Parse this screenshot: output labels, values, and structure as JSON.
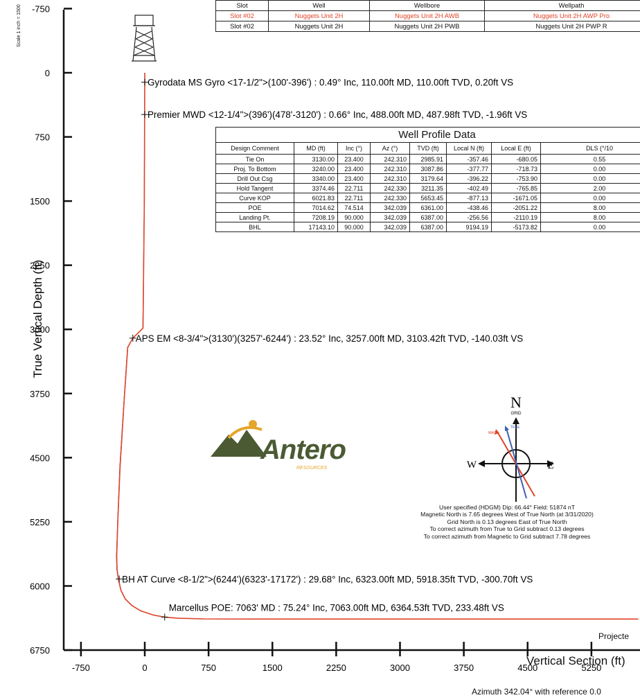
{
  "slot_table": {
    "headers": [
      "Slot",
      "Well",
      "Wellbore",
      "Wellpath"
    ],
    "rows": [
      [
        "Slot #02",
        "Nuggets Unit 2H",
        "Nuggets Unit 2H AWB",
        "Nuggets Unit 2H AWP Pro"
      ],
      [
        "Slot #02",
        "Nuggets Unit 2H",
        "Nuggets Unit 2H PWB",
        "Nuggets Unit 2H PWP R"
      ]
    ],
    "highlight_color": "#e0452b"
  },
  "profile_table": {
    "title": "Well Profile Data",
    "headers": [
      "Design Comment",
      "MD (ft)",
      "Inc (°)",
      "Az (°)",
      "TVD (ft)",
      "Local N (ft)",
      "Local E (ft)",
      "DLS (°/10"
    ],
    "rows": [
      [
        "Tie On",
        "3130.00",
        "23.400",
        "242.310",
        "2985.91",
        "-357.46",
        "-680.05",
        "0.55"
      ],
      [
        "Proj. To Bottom",
        "3240.00",
        "23.400",
        "242.310",
        "3087.86",
        "-377.77",
        "-718.73",
        "0.00"
      ],
      [
        "Drill Out Csg",
        "3340.00",
        "23.400",
        "242.310",
        "3179.64",
        "-396.22",
        "-753.90",
        "0.00"
      ],
      [
        "Hold Tangent",
        "3374.46",
        "22.711",
        "242.330",
        "3211.35",
        "-402.49",
        "-765.85",
        "2.00"
      ],
      [
        "Curve KOP",
        "6021.83",
        "22.711",
        "242.330",
        "5653.45",
        "-877.13",
        "-1671.05",
        "0.00"
      ],
      [
        "POE",
        "7014.62",
        "74.514",
        "342.039",
        "6361.00",
        "-438.46",
        "-2051.22",
        "8.00"
      ],
      [
        "Landing Pt.",
        "7208.19",
        "90.000",
        "342.039",
        "6387.00",
        "-256.56",
        "-2110.19",
        "8.00"
      ],
      [
        "BHL",
        "17143.10",
        "90.000",
        "342.039",
        "6387.00",
        "9194.19",
        "-5173.82",
        "0.00"
      ]
    ]
  },
  "chart_data": {
    "type": "line",
    "xlabel": "Vertical Section (ft)",
    "xlabel_sub": "Azimuth 342.04° with reference 0.0",
    "ylabel": "True Vertical Depth (ft)",
    "scale_note": "Scale 1 inch = 1500",
    "x_ticks": [
      "-750",
      "0",
      "750",
      "1500",
      "2250",
      "3000",
      "3750",
      "4500",
      "5250"
    ],
    "y_ticks": [
      "-750",
      "0",
      "750",
      "1500",
      "2250",
      "3000",
      "3750",
      "4500",
      "5250",
      "6000",
      "6750"
    ],
    "xlim": [
      -750,
      5800
    ],
    "ylim": [
      -750,
      6750
    ],
    "y_inverted": true,
    "series": [
      {
        "color": "#e0452b",
        "x": [
          0,
          0,
          -2,
          -5,
          -20,
          -140,
          -200,
          -240,
          -290,
          -315,
          -330,
          -326,
          -310,
          -280,
          -230,
          -150,
          -50,
          100,
          234,
          400,
          700,
          1500,
          3000,
          4500,
          5800
        ],
        "y": [
          0,
          110,
          488,
          1500,
          2985,
          3103,
          3211,
          3800,
          4600,
          5200,
          5650,
          5800,
          5918,
          6050,
          6150,
          6230,
          6290,
          6340,
          6364,
          6378,
          6385,
          6387,
          6387,
          6387,
          6387
        ]
      },
      {
        "color": "#111111",
        "x": [
          0,
          0,
          -2,
          -6,
          -22,
          -142,
          -202,
          -242,
          -292,
          -317,
          -332,
          -328,
          -312,
          -282,
          -232,
          -152,
          -52,
          98,
          232,
          398,
          698,
          1500,
          3000,
          4500,
          5800
        ],
        "y": [
          0,
          110,
          488,
          1500,
          2985,
          3103,
          3211,
          3800,
          4600,
          5200,
          5650,
          5800,
          5918,
          6050,
          6150,
          6230,
          6290,
          6340,
          6364,
          6378,
          6385,
          6387,
          6387,
          6387,
          6387
        ]
      }
    ],
    "annotations": [
      {
        "x": 0,
        "y": 110,
        "text": "Gyrodata MS Gyro <17-1/2\">(100'-396') : 0.49° Inc, 110.00ft MD, 110.00ft TVD, 0.20ft VS"
      },
      {
        "x": 0,
        "y": 488,
        "text": "Premier MWD <12-1/4\">(396')(478'-3120') : 0.66° Inc, 488.00ft MD, 487.98ft TVD, -1.96ft VS"
      },
      {
        "x": -140,
        "y": 3103,
        "text": "APS EM <8-3/4\">(3130')(3257'-6244') : 23.52° Inc, 3257.00ft MD, 3103.42ft TVD, -140.03ft VS"
      },
      {
        "x": -300,
        "y": 5918,
        "text": "BH AT Curve <8-1/2\">(6244')(6323'-17172') : 29.68° Inc, 6323.00ft MD, 5918.35ft TVD, -300.70ft VS"
      },
      {
        "x": 234,
        "y": 6364,
        "text": "Marcellus POE: 7063' MD : 75.24° Inc, 7063.00ft MD, 6364.53ft TVD, 233.48ft VS"
      }
    ],
    "projected_label": "Projecte"
  },
  "logo": {
    "text": "Antero",
    "sub": "RESOURCES",
    "green": "#4b5a33",
    "gold": "#e5a52a"
  },
  "compass": {
    "n": "N",
    "grid": "GRID",
    "w": "W",
    "e": "E",
    "true_label": "TRUE",
    "mag_label": "MAG",
    "notes": [
      "User specified (HDGM) Dip: 66.44°  Field: 51874 nT",
      "Magnetic North is 7.65 degrees West of True North (at 3/31/2020)",
      "Grid North is 0.13 degrees East of True North",
      "To correct azimuth from True to Grid subtract 0.13 degrees",
      "To correct azimuth from Magnetic to Grid subtract 7.78 degrees"
    ]
  }
}
